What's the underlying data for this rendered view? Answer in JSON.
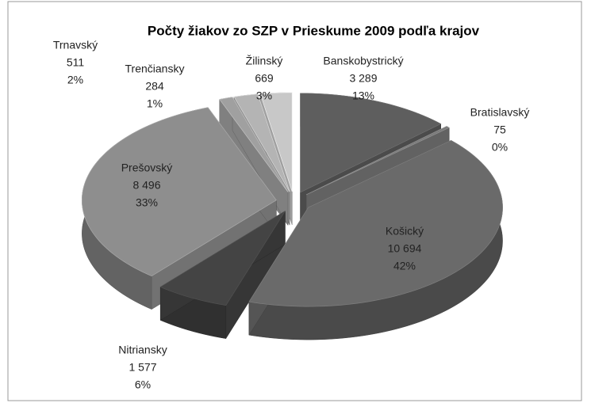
{
  "chart_data": {
    "type": "pie3d",
    "title": "Počty žiakov zo SZP v Prieskume 2009 podľa krajov",
    "categories": [
      "Banskobystrický",
      "Bratislavský",
      "Košický",
      "Nitriansky",
      "Prešovský",
      "Trenčiansky",
      "Trnavský",
      "Žilinský"
    ],
    "values": [
      3289,
      75,
      10694,
      1577,
      8496,
      284,
      511,
      669
    ],
    "value_labels": [
      "3 289",
      "75",
      "10 694",
      "1 577",
      "8 496",
      "284",
      "511",
      "669"
    ],
    "percentages": [
      13,
      0,
      42,
      6,
      33,
      1,
      2,
      3
    ],
    "percentage_labels": [
      "13%",
      "0%",
      "42%",
      "6%",
      "33%",
      "1%",
      "2%",
      "3%"
    ],
    "colors": [
      "#5e5e5e",
      "#7a7a7a",
      "#6a6a6a",
      "#444444",
      "#8e8e8e",
      "#a0a0a0",
      "#b4b4b4",
      "#c8c8c8"
    ]
  }
}
